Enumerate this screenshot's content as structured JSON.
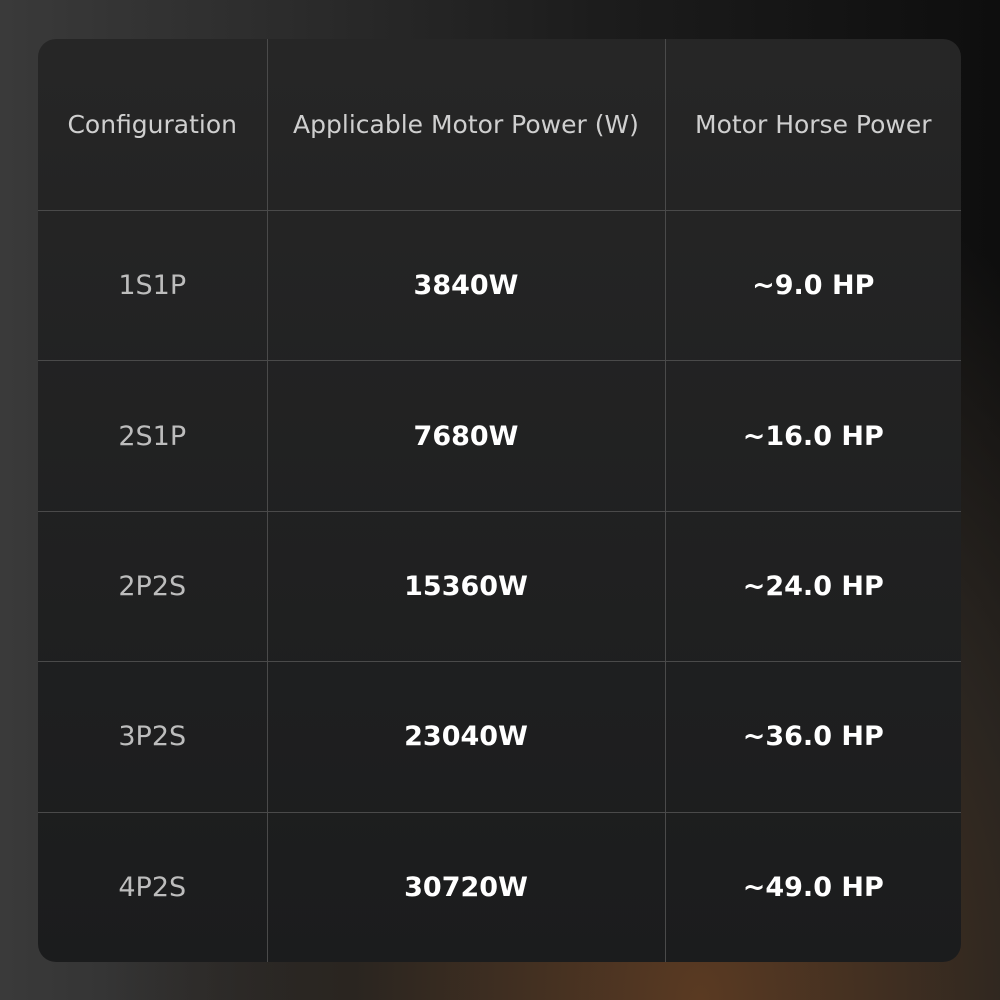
{
  "table": {
    "header": [
      "Configuration",
      "Applicable Motor Power (W)",
      "Motor Horse Power"
    ],
    "rows": [
      [
        "1S1P",
        "3840W",
        "~9.0 HP"
      ],
      [
        "2S1P",
        "7680W",
        "~16.0 HP"
      ],
      [
        "2P2S",
        "15360W",
        "~24.0 HP"
      ],
      [
        "3P2S",
        "23040W",
        "~36.0 HP"
      ],
      [
        "4P2S",
        "30720W",
        "~49.0 HP"
      ]
    ]
  }
}
